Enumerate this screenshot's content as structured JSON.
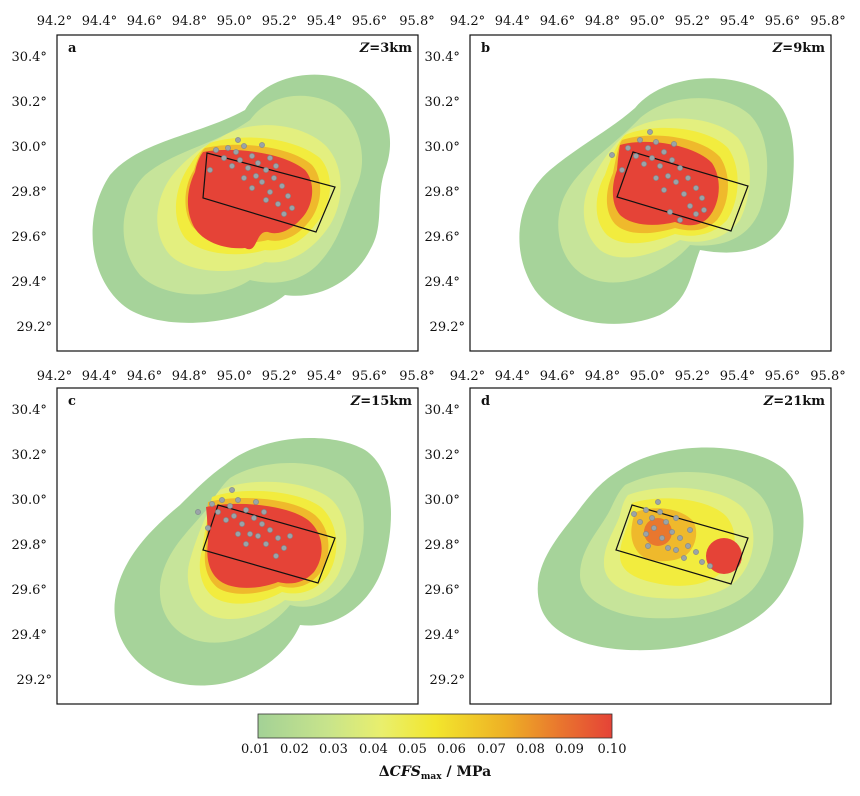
{
  "map": {
    "x_ticks": [
      "94.2°",
      "94.4°",
      "94.6°",
      "94.8°",
      "95.0°",
      "95.2°",
      "95.4°",
      "95.6°",
      "95.8°"
    ],
    "y_ticks": [
      "30.4°",
      "30.2°",
      "30.0°",
      "29.8°",
      "29.6°",
      "29.4°",
      "29.2°"
    ],
    "panels": [
      {
        "label": "a",
        "depth_var": "Z",
        "depth_value": "=3km"
      },
      {
        "label": "b",
        "depth_var": "Z",
        "depth_value": "=9km"
      },
      {
        "label": "c",
        "depth_var": "Z",
        "depth_value": "=15km"
      },
      {
        "label": "d",
        "depth_var": "Z",
        "depth_value": "=21km"
      }
    ]
  },
  "colorbar": {
    "ticks": [
      "0.01",
      "0.02",
      "0.03",
      "0.04",
      "0.05",
      "0.06",
      "0.07",
      "0.08",
      "0.09",
      "0.10"
    ],
    "title_prefix": "Δ",
    "title_var": "CFS",
    "title_sub": "max",
    "title_unit": " / MPa",
    "colors": [
      "#a3d196",
      "#bcdf8c",
      "#d9ea7a",
      "#eef05a",
      "#f2e62d",
      "#f1d122",
      "#eeb025",
      "#ea8a2c",
      "#e7622f",
      "#e54337"
    ]
  },
  "colors": {
    "green": "#a6d39a",
    "light_green": "#c6e49a",
    "yellow_green": "#e3ef7f",
    "yellow": "#f2ec3e",
    "orange": "#efb92c",
    "red": "#e54337",
    "aftershock": "#9aa3a8"
  }
}
